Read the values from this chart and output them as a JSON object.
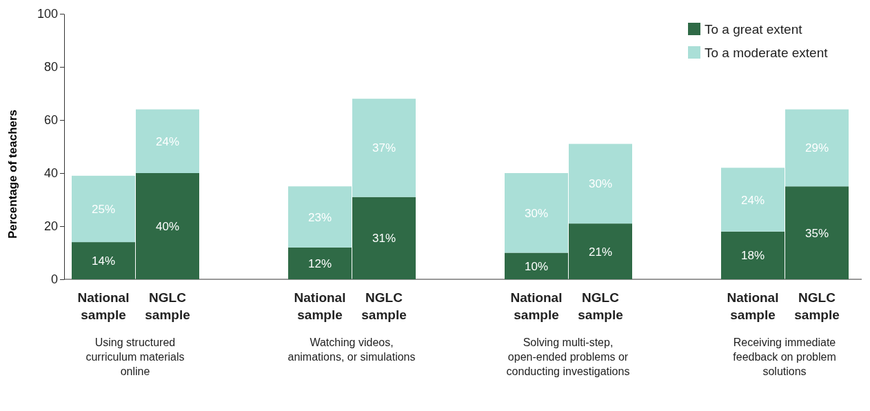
{
  "chart_data": {
    "type": "bar",
    "stacked": true,
    "ylabel": "Percentage of teachers",
    "categories": [
      "National sample",
      "NGLC sample",
      "National sample",
      "NGLC sample",
      "National sample",
      "NGLC sample",
      "National sample",
      "NGLC sample"
    ],
    "series": [
      {
        "name": "To a great extent",
        "color": "#2f6a46",
        "values": [
          14,
          40,
          12,
          31,
          10,
          21,
          18,
          35
        ],
        "value_labels": [
          "14%",
          "40%",
          "12%",
          "31%",
          "10%",
          "21%",
          "18%",
          "35%"
        ]
      },
      {
        "name": "To a moderate extent",
        "color": "#aadfd7",
        "values": [
          25,
          24,
          23,
          37,
          30,
          30,
          24,
          29
        ],
        "value_labels": [
          "25%",
          "24%",
          "23%",
          "37%",
          "30%",
          "30%",
          "24%",
          "29%"
        ]
      }
    ],
    "ylim": [
      0,
      100
    ],
    "yticks": [
      0,
      20,
      40,
      60,
      80,
      100
    ],
    "legend": "top right",
    "annotations": [
      "Using structured curriculum materials online",
      "Watching videos, animations, or simulations",
      "Solving multi-step, open-ended problems or conducting investigations",
      "Receiving immediate feedback on problem solutions"
    ]
  }
}
